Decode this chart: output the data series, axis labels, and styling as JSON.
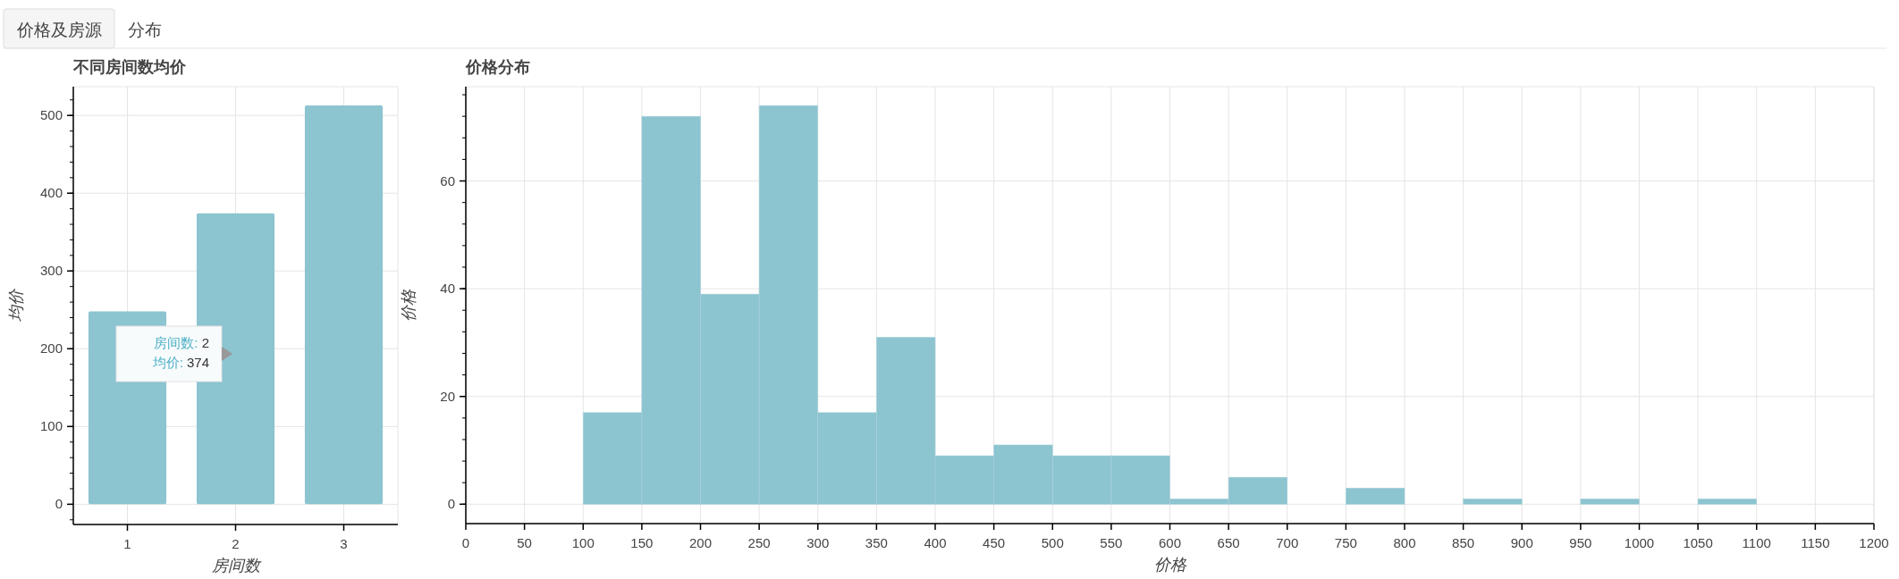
{
  "chart_data": [
    {
      "type": "other",
      "annotations": [
        "价格及房源",
        "分布"
      ]
    },
    {
      "type": "bar",
      "title": "不同房间数均价",
      "xlabel": "房间数",
      "ylabel": "均价",
      "categories": [
        "1",
        "2",
        "3"
      ],
      "values": [
        248,
        374,
        513
      ],
      "color": "#8cc4d0",
      "ylim": [
        -26,
        537
      ],
      "yticks": [
        0,
        100,
        200,
        300,
        400,
        500
      ],
      "grid": true,
      "annotations": [
        "房间数: 2",
        "均价: 374"
      ]
    },
    {
      "type": "histogram",
      "title": "价格分布",
      "xlabel": "价格",
      "ylabel": "价格",
      "bins": [
        100,
        150,
        200,
        250,
        300,
        350,
        400,
        450,
        500,
        550,
        600,
        650,
        700,
        750,
        800,
        850,
        900,
        950,
        1000,
        1050,
        1100
      ],
      "values": [
        17,
        72,
        39,
        74,
        17,
        31,
        9,
        11,
        9,
        9,
        1,
        5,
        0,
        3,
        0,
        1,
        0,
        1,
        0,
        1
      ],
      "color": "#8cc4d0",
      "xlim": [
        0,
        1200
      ],
      "xticks": [
        0,
        50,
        100,
        150,
        200,
        250,
        300,
        350,
        400,
        450,
        500,
        550,
        600,
        650,
        700,
        750,
        800,
        850,
        900,
        950,
        1000,
        1050,
        1100,
        1150,
        1200
      ],
      "ylim": [
        -3.6,
        77.5
      ],
      "yticks": [
        0,
        20,
        40,
        60
      ],
      "grid": true
    }
  ]
}
